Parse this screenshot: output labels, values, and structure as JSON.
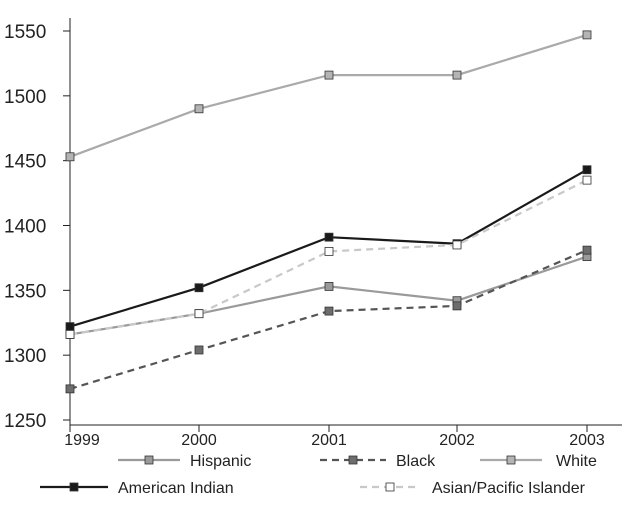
{
  "chart_data": {
    "type": "line",
    "title": "",
    "xlabel": "",
    "ylabel": "",
    "x": [
      "1999",
      "2000",
      "2001",
      "2002",
      "2003"
    ],
    "ylim": [
      1250,
      1550
    ],
    "yticks": [
      "1250",
      "1300",
      "1350",
      "1400",
      "1450",
      "1500",
      "1550"
    ],
    "grid": false,
    "legend_position": "bottom",
    "series": [
      {
        "name": "Hispanic",
        "values": [
          1316,
          1332,
          1353,
          1342,
          1376
        ],
        "color": "#9a9a9a",
        "marker_fill": "#9a9a9a",
        "dash": "solid"
      },
      {
        "name": "Black",
        "values": [
          1274,
          1304,
          1334,
          1338,
          1381
        ],
        "color": "#555555",
        "marker_fill": "#6d6d6d",
        "dash": "dashed"
      },
      {
        "name": "White",
        "values": [
          1453,
          1490,
          1516,
          1516,
          1547
        ],
        "color": "#aaaaaa",
        "marker_fill": "#b4b4b4",
        "dash": "solid"
      },
      {
        "name": "American Indian",
        "values": [
          1322,
          1352,
          1391,
          1386,
          1443
        ],
        "color": "#1a1a1a",
        "marker_fill": "#1a1a1a",
        "dash": "solid"
      },
      {
        "name": "Asian/Pacific Islander",
        "values": [
          1316,
          1332,
          1380,
          1385,
          1435
        ],
        "color": "#c8c8c8",
        "marker_fill": "#ffffff",
        "dash": "dashed"
      }
    ]
  }
}
